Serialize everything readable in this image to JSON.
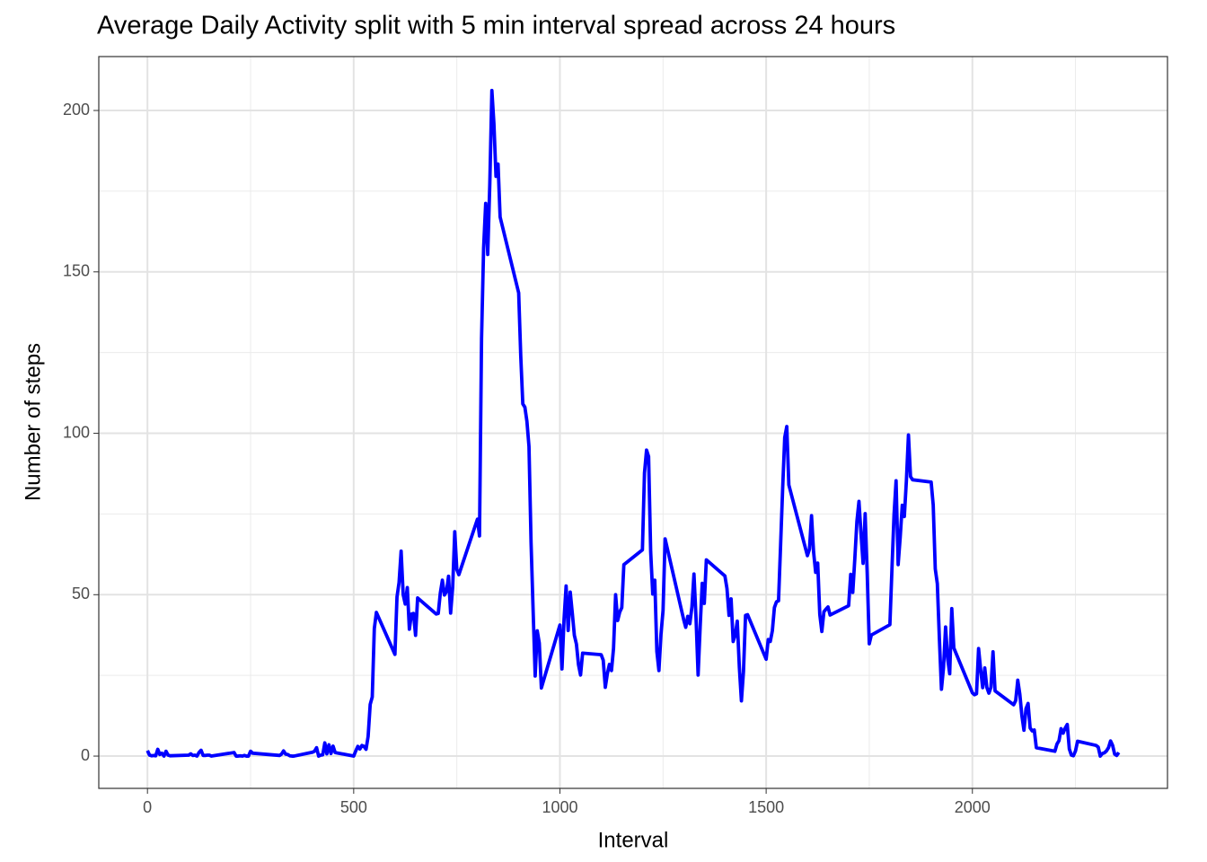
{
  "chart_data": {
    "type": "line",
    "title": "Average Daily Activity split with 5 min interval spread across 24 hours",
    "x_label": "Interval",
    "y_label": "Number of steps",
    "color": "#0000ff",
    "xlim": [
      -118,
      2473
    ],
    "ylim": [
      -10,
      216.7
    ],
    "xticks": [
      0,
      500,
      1000,
      1500,
      2000
    ],
    "yticks": [
      0,
      50,
      100,
      150,
      200
    ],
    "minor_xticks": [
      250,
      750,
      1250,
      1750,
      2250
    ],
    "minor_yticks": [
      25,
      75,
      125,
      175
    ],
    "grid": true,
    "x": [
      0,
      5,
      10,
      15,
      20,
      25,
      30,
      35,
      40,
      45,
      50,
      55,
      100,
      105,
      110,
      115,
      120,
      125,
      130,
      135,
      140,
      145,
      150,
      155,
      210,
      215,
      220,
      225,
      230,
      235,
      240,
      245,
      250,
      255,
      320,
      325,
      330,
      335,
      340,
      345,
      350,
      355,
      400,
      405,
      410,
      415,
      420,
      425,
      430,
      435,
      440,
      445,
      450,
      455,
      500,
      505,
      510,
      515,
      520,
      525,
      530,
      535,
      540,
      545,
      550,
      555,
      600,
      605,
      610,
      615,
      620,
      625,
      630,
      635,
      640,
      645,
      650,
      655,
      700,
      705,
      710,
      715,
      720,
      725,
      730,
      735,
      740,
      745,
      750,
      755,
      800,
      805,
      810,
      815,
      820,
      825,
      830,
      835,
      840,
      845,
      850,
      855,
      900,
      905,
      910,
      915,
      920,
      925,
      930,
      935,
      940,
      945,
      950,
      955,
      1000,
      1005,
      1010,
      1015,
      1020,
      1025,
      1030,
      1035,
      1040,
      1045,
      1050,
      1055,
      1100,
      1105,
      1110,
      1115,
      1120,
      1125,
      1130,
      1135,
      1140,
      1145,
      1150,
      1155,
      1200,
      1205,
      1210,
      1215,
      1220,
      1225,
      1230,
      1235,
      1240,
      1245,
      1250,
      1255,
      1300,
      1305,
      1310,
      1315,
      1320,
      1325,
      1330,
      1335,
      1340,
      1345,
      1350,
      1355,
      1400,
      1405,
      1410,
      1415,
      1420,
      1425,
      1430,
      1435,
      1440,
      1445,
      1450,
      1455,
      1500,
      1505,
      1510,
      1515,
      1520,
      1525,
      1530,
      1535,
      1540,
      1545,
      1550,
      1555,
      1600,
      1605,
      1610,
      1615,
      1620,
      1625,
      1630,
      1635,
      1640,
      1645,
      1650,
      1655,
      1700,
      1705,
      1710,
      1715,
      1720,
      1725,
      1730,
      1735,
      1740,
      1745,
      1750,
      1755,
      1800,
      1805,
      1810,
      1815,
      1820,
      1825,
      1830,
      1835,
      1840,
      1845,
      1850,
      1855,
      1900,
      1905,
      1910,
      1915,
      1920,
      1925,
      1930,
      1935,
      1940,
      1945,
      1950,
      1955,
      2000,
      2005,
      2010,
      2015,
      2020,
      2025,
      2030,
      2035,
      2040,
      2045,
      2050,
      2055,
      2100,
      2105,
      2110,
      2115,
      2120,
      2125,
      2130,
      2135,
      2140,
      2145,
      2150,
      2155,
      2200,
      2205,
      2210,
      2215,
      2220,
      2225,
      2230,
      2235,
      2240,
      2245,
      2250,
      2255,
      2300,
      2305,
      2310,
      2315,
      2320,
      2325,
      2330,
      2335,
      2340,
      2345,
      2350,
      2355
    ],
    "values": [
      1.7,
      0.3,
      0.1,
      0.2,
      0.1,
      2.1,
      0.5,
      0.9,
      0,
      1.5,
      0.3,
      0.1,
      0.3,
      0.7,
      0.2,
      0.3,
      0,
      1.1,
      1.8,
      0.2,
      0.2,
      0.3,
      0.3,
      0,
      1.1,
      0,
      0,
      0.1,
      0,
      0.2,
      0,
      0,
      1.5,
      0.9,
      0.2,
      0.6,
      1.6,
      0.6,
      0.5,
      0.1,
      0,
      0,
      1.2,
      1.5,
      2.6,
      0,
      0.3,
      0.4,
      4.1,
      0.7,
      3.5,
      0.8,
      3.1,
      1.1,
      0,
      1.6,
      3.0,
      2.2,
      3.3,
      3.0,
      2.1,
      6.1,
      16.0,
      18.3,
      39.5,
      44.5,
      31.5,
      49.3,
      53.8,
      63.5,
      50.0,
      47.1,
      52.2,
      39.3,
      44.0,
      44.2,
      37.4,
      49.0,
      44.0,
      44.2,
      50.5,
      54.5,
      49.9,
      51.0,
      55.7,
      44.3,
      52.3,
      69.5,
      57.8,
      56.2,
      73.4,
      68.2,
      129.4,
      157.5,
      171.2,
      155.4,
      177.3,
      206.2,
      195.9,
      179.6,
      183.4,
      167.0,
      143.5,
      124.0,
      109.1,
      108.1,
      103.7,
      95.9,
      66.2,
      45.2,
      24.8,
      38.8,
      35.0,
      21.1,
      40.6,
      27.0,
      42.4,
      52.7,
      38.9,
      50.8,
      44.3,
      37.4,
      34.7,
      28.3,
      25.1,
      31.9,
      31.4,
      29.7,
      21.3,
      25.5,
      28.4,
      26.5,
      33.4,
      50.0,
      42.0,
      44.6,
      46.0,
      59.3,
      63.9,
      87.7,
      94.8,
      92.8,
      63.4,
      50.2,
      54.5,
      32.4,
      26.5,
      37.7,
      45.1,
      67.3,
      42.3,
      39.9,
      43.3,
      41.0,
      46.2,
      56.4,
      42.8,
      25.1,
      40.0,
      53.5,
      47.3,
      60.8,
      55.8,
      51.9,
      43.6,
      48.7,
      35.5,
      37.5,
      41.8,
      27.5,
      17.1,
      26.1,
      43.6,
      43.8,
      30.0,
      36.1,
      35.5,
      38.8,
      46.0,
      47.8,
      48.1,
      65.3,
      82.9,
      98.7,
      102.1,
      84.0,
      62.1,
      64.1,
      74.5,
      63.2,
      56.9,
      59.8,
      43.9,
      38.6,
      44.7,
      45.5,
      46.2,
      43.7,
      46.6,
      56.3,
      50.7,
      61.2,
      72.7,
      78.9,
      68.9,
      59.7,
      75.1,
      56.5,
      34.8,
      37.5,
      40.7,
      58.0,
      74.7,
      85.3,
      59.3,
      67.8,
      77.7,
      74.2,
      85.3,
      99.5,
      86.6,
      85.6,
      84.9,
      77.8,
      58.0,
      53.4,
      36.3,
      20.7,
      27.4,
      40.0,
      30.2,
      25.5,
      45.7,
      33.5,
      19.6,
      19.0,
      19.3,
      33.3,
      26.8,
      21.2,
      27.3,
      21.3,
      19.5,
      21.3,
      32.3,
      20.2,
      15.9,
      17.2,
      23.5,
      19.2,
      12.5,
      8.0,
      14.7,
      16.3,
      8.7,
      7.8,
      8.1,
      2.6,
      1.5,
      3.7,
      4.8,
      8.5,
      7.1,
      8.7,
      9.8,
      2.2,
      0.3,
      0.1,
      1.6,
      4.6,
      3.3,
      2.8,
      0,
      0.8,
      1.0,
      1.6,
      2.6,
      4.7,
      3.3,
      0.6,
      0.2,
      1.1
    ]
  }
}
